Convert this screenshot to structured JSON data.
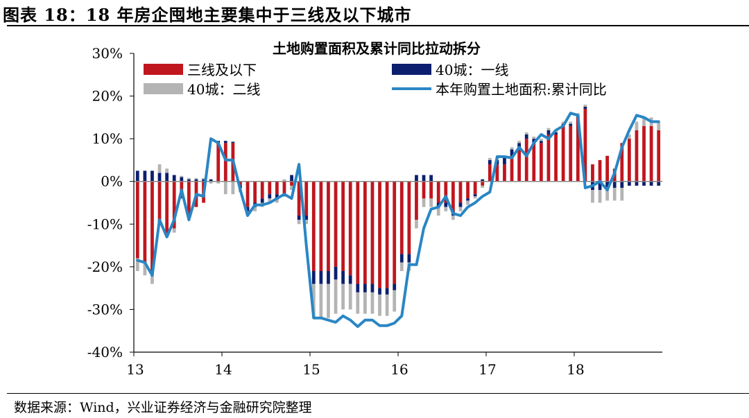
{
  "figure_title": "图表 18：18 年房企囤地主要集中于三线及以下城市",
  "source": "数据来源：Wind，兴业证券经济与金融研究院整理",
  "colors": {
    "tier3": "#c0161e",
    "tier1": "#0c1f6e",
    "tier2": "#b4b4b4",
    "line": "#2a86c4",
    "grid": "#888888"
  },
  "chart_data": {
    "type": "bar",
    "stacked": true,
    "title": "土地购置面积及累计同比拉动拆分",
    "xlabel": "",
    "ylabel": "",
    "ylim": [
      -40,
      30
    ],
    "yticks": [
      "30%",
      "20%",
      "10%",
      "0%",
      "-10%",
      "-20%",
      "-30%",
      "-40%"
    ],
    "xticks": [
      "13",
      "14",
      "15",
      "16",
      "17",
      "18"
    ],
    "legend_position": "top",
    "categories": [
      "13-01",
      "13-02",
      "13-03",
      "13-04",
      "13-05",
      "13-06",
      "13-07",
      "13-08",
      "13-09",
      "13-10",
      "13-11",
      "13-12",
      "14-01",
      "14-02",
      "14-03",
      "14-04",
      "14-05",
      "14-06",
      "14-07",
      "14-08",
      "14-09",
      "14-10",
      "14-11",
      "14-12",
      "15-01",
      "15-02",
      "15-03",
      "15-04",
      "15-05",
      "15-06",
      "15-07",
      "15-08",
      "15-09",
      "15-10",
      "15-11",
      "15-12",
      "16-01",
      "16-02",
      "16-03",
      "16-04",
      "16-05",
      "16-06",
      "16-07",
      "16-08",
      "16-09",
      "16-10",
      "16-11",
      "16-12",
      "17-01",
      "17-02",
      "17-03",
      "17-04",
      "17-05",
      "17-06",
      "17-07",
      "17-08",
      "17-09",
      "17-10",
      "17-11",
      "17-12",
      "18-01",
      "18-02",
      "18-03",
      "18-04",
      "18-05",
      "18-06",
      "18-07",
      "18-08",
      "18-09",
      "18-10",
      "18-11",
      "18-12"
    ],
    "series": [
      {
        "name": "三线及以下",
        "type": "bar",
        "values": [
          -18,
          -19,
          -21,
          -10,
          -13,
          -11,
          -4,
          -8,
          -6,
          -5,
          0,
          9,
          9,
          9,
          -1,
          -6,
          -5,
          -4,
          -3,
          -3,
          -3,
          -1,
          -8,
          -8,
          -21,
          -21,
          -21,
          -20,
          -21,
          -22,
          -24,
          -24,
          -24,
          -25,
          -25,
          -24,
          -17,
          -17,
          -9,
          -4,
          -4,
          -5,
          -5,
          -7,
          -5,
          -4,
          -3,
          -1,
          4,
          4,
          4,
          6,
          8,
          10,
          9,
          9,
          11,
          11,
          13,
          13,
          15,
          17,
          4,
          5,
          6,
          3,
          9,
          10,
          12,
          13,
          13,
          12
        ]
      },
      {
        "name": "40城：一线",
        "type": "bar",
        "values": [
          2.5,
          2.5,
          2.5,
          2,
          2,
          1.5,
          1,
          0.5,
          0.5,
          0.5,
          0.5,
          0.5,
          0.5,
          0.3,
          -0.5,
          -1,
          -1,
          -1,
          -1,
          -1,
          -0.5,
          1.5,
          -1,
          -1,
          -3,
          -3,
          -3,
          -3,
          -3,
          -2,
          -2,
          -2,
          -2,
          -1.5,
          -1.5,
          -1.5,
          -2,
          -2,
          1.5,
          1.5,
          1.5,
          -1,
          -1,
          -1,
          -1,
          -0.5,
          -0.5,
          0.5,
          1,
          1,
          1.5,
          1.5,
          1,
          1,
          1,
          0.5,
          1,
          0.5,
          0.5,
          0.5,
          0.5,
          0.5,
          -2,
          -2,
          -1.5,
          -1.5,
          -1.5,
          -1,
          -1,
          -1,
          -1,
          -1
        ]
      },
      {
        "name": "40城：二线",
        "type": "bar",
        "values": [
          -3,
          -3,
          -3,
          2,
          1,
          -1,
          0.3,
          0.3,
          0.3,
          0.3,
          -0.5,
          -0.5,
          -3,
          -3,
          -1,
          -1,
          -1,
          -1,
          -1,
          -1,
          0.5,
          -1,
          -1,
          -1,
          -8,
          -8,
          -8,
          -8,
          -6,
          -6,
          -5,
          -5,
          -5,
          -5,
          -5,
          -5,
          -2,
          -2,
          -2,
          -2,
          -2,
          -2,
          -1,
          -1,
          -1,
          -1,
          -0.5,
          -0.5,
          0.5,
          0.5,
          0.5,
          0.5,
          0.5,
          0.5,
          0.5,
          0.5,
          0.5,
          0.5,
          0.5,
          0.5,
          0.5,
          0.5,
          -3,
          -3,
          -3,
          -3,
          -3,
          1,
          2,
          2,
          2,
          2
        ]
      },
      {
        "name": "本年购置土地面积:累计同比",
        "type": "line",
        "values": [
          -18.5,
          -19,
          -22,
          -9,
          -13,
          -9,
          -2,
          -9,
          -3,
          -3.5,
          10,
          9,
          5,
          5,
          -2,
          -8,
          -5.5,
          -5.5,
          -5,
          -4,
          -3,
          -4,
          4,
          -15,
          -32,
          -32,
          -32.5,
          -33,
          -31.5,
          -32.5,
          -34,
          -32.5,
          -32.5,
          -33.8,
          -33.8,
          -33.2,
          -31.5,
          -19.5,
          -19.5,
          -11,
          -6.5,
          -6,
          -3.5,
          -7.5,
          -8,
          -6,
          -5,
          -3.5,
          -2.5,
          5.8,
          5.8,
          5.5,
          8,
          6,
          9,
          11,
          10,
          12,
          13,
          16,
          15.5,
          -1.5,
          -1,
          0,
          -2,
          2,
          8,
          12,
          15.5,
          15,
          14,
          14
        ]
      }
    ]
  }
}
